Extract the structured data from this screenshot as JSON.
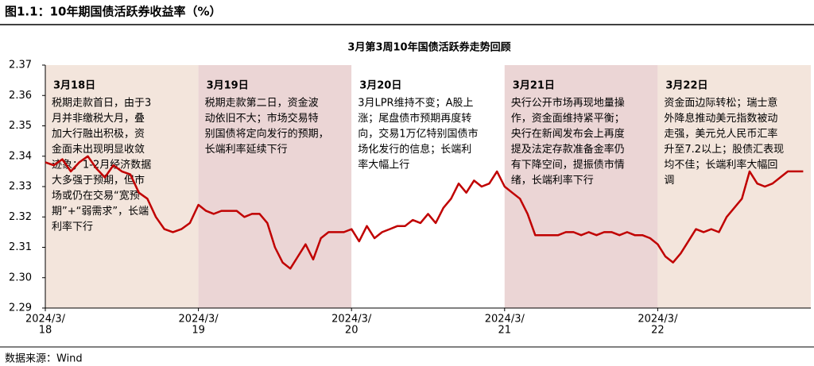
{
  "header": {
    "title": "图1.1：10年期国债活跃券收益率（%）"
  },
  "chart_data": {
    "type": "line",
    "title": "3月第3周10年国债活跃券走势回顾",
    "color": "#c00000",
    "ylim": [
      2.29,
      2.37
    ],
    "yticks": [
      2.29,
      {
        "value": 2.3,
        "label": "2.30"
      },
      2.31,
      2.32,
      2.33,
      2.34,
      2.35,
      2.36,
      2.37
    ],
    "days": [
      {
        "tick_label": [
          "2024/3/",
          "18"
        ],
        "band_color": "#f3e5dc",
        "note_title": "3月18日",
        "note": [
          "税期走款首日，由于3",
          "月并非缴税大月，叠",
          "加大行融出积极，资",
          "金面未出现明显收敛",
          "迹象；1-2月经济数据",
          "大多强于预期，但市",
          "场或仍在交易“宽预",
          "期”+“弱需求”，长端",
          "利率下行"
        ],
        "values": [
          2.338,
          2.337,
          2.339,
          2.335,
          2.338,
          2.34,
          2.336,
          2.333,
          2.337,
          2.335,
          2.334,
          2.328,
          2.326,
          2.32,
          2.316,
          2.315,
          2.316,
          2.318
        ]
      },
      {
        "tick_label": [
          "2024/3/",
          "19"
        ],
        "band_color": "#ebd5d5",
        "note_title": "3月19日",
        "note": [
          "税期走款第二日，资金波",
          "动依旧不大；市场交易特",
          "别国债将定向发行的预期，",
          "长端利率延续下行"
        ],
        "values": [
          2.324,
          2.322,
          2.321,
          2.322,
          2.322,
          2.322,
          2.32,
          2.321,
          2.321,
          2.318,
          2.31,
          2.305,
          2.303,
          2.307,
          2.311,
          2.306,
          2.313,
          2.315,
          2.315,
          2.315
        ]
      },
      {
        "tick_label": [
          "2024/3/",
          "20"
        ],
        "band_color": "#ffffff",
        "note_title": "3月20日",
        "note": [
          "3月LPR维持不变；A股上",
          "涨；尾盘债市预期再度转",
          "向，交易1万亿特别国债市",
          "场化发行的信息；长端利",
          "率大幅上行"
        ],
        "values": [
          2.316,
          2.312,
          2.317,
          2.313,
          2.315,
          2.316,
          2.317,
          2.317,
          2.319,
          2.318,
          2.321,
          2.318,
          2.323,
          2.326,
          2.331,
          2.328,
          2.332,
          2.33,
          2.331,
          2.335
        ]
      },
      {
        "tick_label": [
          "2024/3/",
          "21"
        ],
        "band_color": "#ebd5d5",
        "note_title": "3月21日",
        "note": [
          "央行公开市场再现地量操",
          "作，资金面维持紧平衡；",
          "央行在新闻发布会上再度",
          "提及法定存款准备金率仍",
          "有下降空间，提振债市情",
          "绪，长端利率下行"
        ],
        "values": [
          2.33,
          2.328,
          2.326,
          2.321,
          2.314,
          2.314,
          2.314,
          2.314,
          2.315,
          2.315,
          2.314,
          2.315,
          2.314,
          2.315,
          2.315,
          2.314,
          2.315,
          2.314,
          2.314,
          2.313
        ]
      },
      {
        "tick_label": [
          "2024/3/",
          "22"
        ],
        "band_color": "#f3e5dc",
        "note_title": "3月22日",
        "note": [
          "资金面边际转松；瑞士意",
          "外降息推动美元指数被动",
          "走强，美元兑人民币汇率",
          "升至7.2以上；股债汇表现",
          "均不佳；长端利率大幅回",
          "调"
        ],
        "values": [
          2.311,
          2.307,
          2.305,
          2.308,
          2.312,
          2.316,
          2.315,
          2.316,
          2.315,
          2.32,
          2.323,
          2.326,
          2.335,
          2.331,
          2.33,
          2.331,
          2.333,
          2.335,
          2.335,
          2.335
        ]
      }
    ]
  },
  "source": "数据来源：Wind"
}
